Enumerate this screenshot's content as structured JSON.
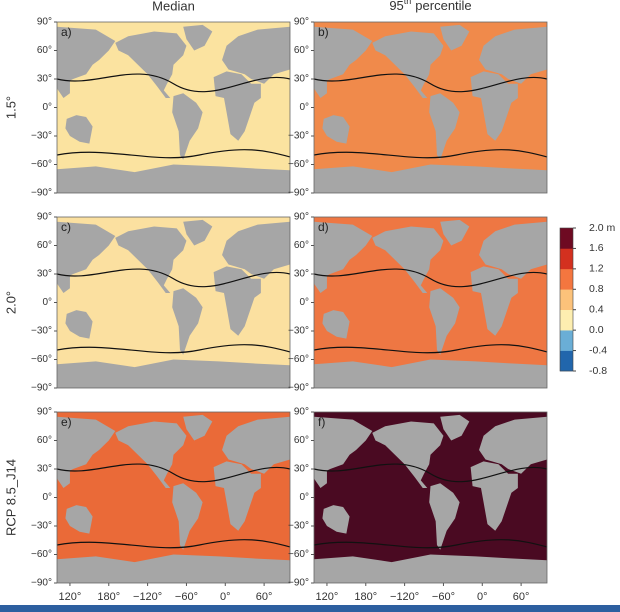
{
  "chart_data": {
    "type": "map",
    "column_titles": [
      "Median",
      {
        "number": "95",
        "superscript": "th",
        "text": "percentile"
      }
    ],
    "row_labels": [
      "1.5°",
      "2.0°",
      "RCP 8.5_J14"
    ],
    "lon_range": [
      100,
      460
    ],
    "lat_range": [
      -90,
      90
    ],
    "yticks": [
      {
        "value": 90,
        "label": "90°"
      },
      {
        "value": 60,
        "label": "60°"
      },
      {
        "value": 30,
        "label": "30°"
      },
      {
        "value": 0,
        "label": "0°"
      },
      {
        "value": -30,
        "label": "−30°"
      },
      {
        "value": -60,
        "label": "−60°"
      },
      {
        "value": -90,
        "label": "−90°"
      }
    ],
    "xticks": [
      {
        "value": 120,
        "label": "120°"
      },
      {
        "value": 180,
        "label": "180°"
      },
      {
        "value": -120,
        "label": "−120°"
      },
      {
        "value": -60,
        "label": "−60°"
      },
      {
        "value": 0,
        "label": "0°"
      },
      {
        "value": 60,
        "label": "60°"
      }
    ],
    "panels": [
      {
        "label": "a)",
        "color": "#fbe3a0"
      },
      {
        "label": "b)",
        "color": "#f08a4b"
      },
      {
        "label": "c)",
        "color": "#fbe0a0"
      },
      {
        "label": "d)",
        "color": "#ee7743"
      },
      {
        "label": "e)",
        "color": "#ea6a38"
      },
      {
        "label": "f)",
        "color": "#4a0a22"
      }
    ],
    "colorbar": {
      "clim": [
        -0.8,
        2.0
      ],
      "colors": [
        "#2166ac",
        "#6aaed6",
        "#fdeeb0",
        "#fcc27a",
        "#f4763f",
        "#d3301f",
        "#6e0a22"
      ],
      "ticks": [
        {
          "value": 2.0,
          "label": "2.0 m"
        },
        1.6,
        1.2,
        0.8,
        0.4,
        {
          "value": 0,
          "label": "0.0"
        },
        -0.4,
        -0.8
      ]
    }
  }
}
